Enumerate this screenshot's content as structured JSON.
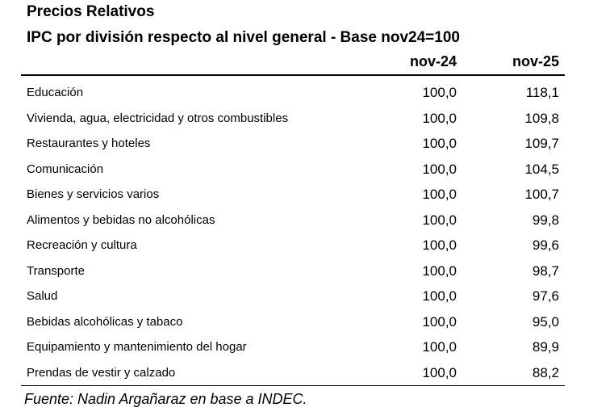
{
  "header": {
    "title": "Precios Relativos",
    "subtitle": "IPC por división respecto al nivel general - Base nov24=100"
  },
  "table": {
    "columns": [
      "nov-24",
      "nov-25"
    ],
    "rows": [
      [
        "Educación",
        "100,0",
        "118,1"
      ],
      [
        "Vivienda, agua, electricidad y otros combustibles",
        "100,0",
        "109,8"
      ],
      [
        "Restaurantes y hoteles",
        "100,0",
        "109,7"
      ],
      [
        "Comunicación",
        "100,0",
        "104,5"
      ],
      [
        "Bienes y servicios varios",
        "100,0",
        "100,7"
      ],
      [
        "Alimentos y bebidas no alcohólicas",
        "100,0",
        "99,8"
      ],
      [
        "Recreación y cultura",
        "100,0",
        "99,6"
      ],
      [
        "Transporte",
        "100,0",
        "98,7"
      ],
      [
        "Salud",
        "100,0",
        "97,6"
      ],
      [
        "Bebidas alcohólicas y tabaco",
        "100,0",
        "95,0"
      ],
      [
        "Equipamiento y mantenimiento del hogar",
        "100,0",
        "89,9"
      ],
      [
        "Prendas de vestir y calzado",
        "100,0",
        "88,2"
      ]
    ]
  },
  "footer": {
    "source": "Fuente: Nadin Argañaraz en base a INDEC."
  }
}
